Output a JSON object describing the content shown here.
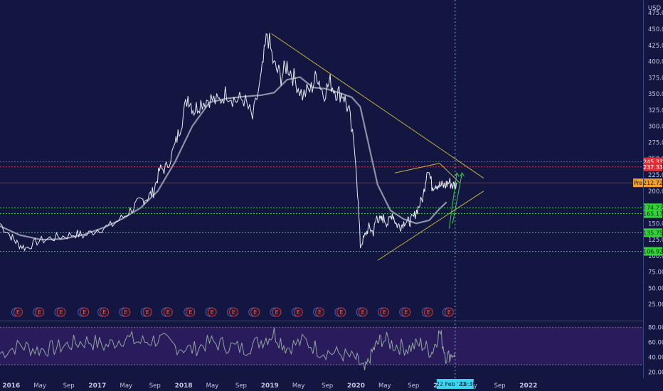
{
  "chart_data": {
    "type": "line",
    "currency": "USD",
    "price_axis": {
      "ticks": [
        475,
        450,
        425,
        400,
        375,
        350,
        325,
        300,
        275,
        250,
        225,
        200,
        175,
        150,
        125,
        100,
        75,
        50,
        25
      ],
      "labels": [
        "475.00",
        "450.00",
        "425.00",
        "400.00",
        "375.00",
        "350.00",
        "325.00",
        "300.00",
        "275.00",
        "250.00",
        "225.00",
        "200.00",
        "175.00",
        "150.00",
        "125.00",
        "100.00",
        "75.00",
        "50.00",
        "25.00"
      ],
      "range": [
        0,
        495
      ]
    },
    "rsi_axis": {
      "ticks": [
        80,
        60,
        40,
        20
      ],
      "labels": [
        "80.00",
        "60.00",
        "40.00",
        "20.00"
      ],
      "range": [
        12,
        88
      ],
      "band": [
        30,
        80
      ]
    },
    "time_axis": {
      "labels": [
        "2016",
        "May",
        "Sep",
        "2017",
        "May",
        "Sep",
        "2018",
        "May",
        "Sep",
        "2019",
        "May",
        "Sep",
        "2020",
        "May",
        "Sep",
        "2021",
        "May",
        "Sep",
        "2022"
      ],
      "values": [
        2016.0,
        2016.333,
        2016.667,
        2017.0,
        2017.333,
        2017.667,
        2018.0,
        2018.333,
        2018.667,
        2019.0,
        2019.333,
        2019.667,
        2020.0,
        2020.333,
        2020.667,
        2021.0,
        2021.333,
        2021.667,
        2022.0
      ],
      "range": [
        2015.87,
        2023.33
      ]
    },
    "price_series": {
      "x": [
        2015.87,
        2016.0,
        2016.08,
        2016.17,
        2016.3,
        2016.45,
        2016.6,
        2016.75,
        2016.85,
        2017.0,
        2017.15,
        2017.3,
        2017.42,
        2017.5,
        2017.58,
        2017.65,
        2017.72,
        2017.8,
        2017.9,
        2017.97,
        2018.05,
        2018.12,
        2018.2,
        2018.3,
        2018.4,
        2018.5,
        2018.6,
        2018.7,
        2018.8,
        2018.9,
        2018.97,
        2019.05,
        2019.13,
        2019.2,
        2019.28,
        2019.38,
        2019.48,
        2019.55,
        2019.62,
        2019.7,
        2019.78,
        2019.85,
        2019.92,
        2020.0,
        2020.05,
        2020.1,
        2020.15,
        2020.2,
        2020.24,
        2020.28,
        2020.32,
        2020.37,
        2020.42,
        2020.47,
        2020.52,
        2020.57,
        2020.62,
        2020.67,
        2020.72,
        2020.78,
        2020.83,
        2020.88,
        2020.93,
        2020.98,
        2021.03,
        2021.08,
        2021.13,
        2021.17
      ],
      "y": [
        150,
        130,
        118,
        112,
        122,
        127,
        130,
        134,
        131,
        141,
        146,
        160,
        175,
        185,
        190,
        199,
        232,
        236,
        270,
        304,
        347,
        325,
        337,
        343,
        337,
        353,
        340,
        342,
        312,
        375,
        444,
        393,
        377,
        395,
        375,
        348,
        358,
        381,
        350,
        368,
        352,
        350,
        321,
        244,
        115,
        130,
        144,
        136,
        160,
        154,
        158,
        150,
        166,
        148,
        146,
        154,
        152,
        160,
        174,
        192,
        239,
        208,
        212,
        208,
        208,
        214,
        208,
        213
      ]
    },
    "moving_average": {
      "x": [
        2015.87,
        2016.1,
        2016.35,
        2016.6,
        2016.85,
        2017.1,
        2017.3,
        2017.5,
        2017.7,
        2017.9,
        2018.1,
        2018.3,
        2018.5,
        2018.7,
        2018.9,
        2019.05,
        2019.2,
        2019.35,
        2019.5,
        2019.65,
        2019.8,
        2019.95,
        2020.05,
        2020.15,
        2020.25,
        2020.4,
        2020.55,
        2020.7,
        2020.85,
        2020.95,
        2021.05
      ],
      "y": [
        146,
        132,
        125,
        126,
        133,
        145,
        158,
        174,
        200,
        245,
        300,
        337,
        343,
        346,
        348,
        352,
        372,
        376,
        360,
        358,
        352,
        345,
        330,
        270,
        210,
        170,
        157,
        150,
        155,
        170,
        183
      ]
    },
    "trend_lines": [
      {
        "name": "",
        "x": [
          2019.02,
          2021.48
        ],
        "y": [
          443,
          220
        ]
      },
      {
        "name": "",
        "x": [
          2020.25,
          2021.48
        ],
        "y": [
          93,
          200
        ]
      },
      {
        "name": "",
        "x": [
          2020.45,
          2020.97
        ],
        "y": [
          228,
          243
        ]
      },
      {
        "name": "",
        "x": [
          2020.97,
          2021.2
        ],
        "y": [
          243,
          213
        ]
      }
    ],
    "resistance_levels": [
      {
        "value": 245.33,
        "label": "245.33"
      },
      {
        "value": 237.33,
        "label": "237.33"
      }
    ],
    "support_levels": [
      {
        "value": 174.27,
        "label": "174.27"
      },
      {
        "value": 165.17,
        "label": "165.17"
      },
      {
        "value": 135.75,
        "label": "135.75"
      },
      {
        "value": 106.92,
        "label": "106.92"
      }
    ],
    "pre_market": {
      "value": 212.72,
      "label": "212.72",
      "tag": "Pre"
    },
    "earnings_events": {
      "x": [
        2016.08,
        2016.33,
        2016.58,
        2016.85,
        2017.08,
        2017.33,
        2017.58,
        2017.82,
        2018.08,
        2018.33,
        2018.58,
        2018.83,
        2019.08,
        2019.33,
        2019.58,
        2019.83,
        2020.08,
        2020.33,
        2020.58,
        2020.84,
        2021.08
      ],
      "label": "E"
    },
    "forecast_arrows": [
      {
        "x": [
          2021.08,
          2021.17
        ],
        "y": [
          142,
          228
        ]
      },
      {
        "x": [
          2021.12,
          2021.23
        ],
        "y": [
          150,
          228
        ]
      }
    ],
    "rsi_series": {
      "x": [
        2015.87,
        2016.1,
        2016.3,
        2016.5,
        2016.7,
        2016.9,
        2017.1,
        2017.3,
        2017.5,
        2017.7,
        2017.9,
        2018.1,
        2018.3,
        2018.5,
        2018.7,
        2018.9,
        2019.05,
        2019.2,
        2019.4,
        2019.6,
        2019.8,
        2020.0,
        2020.1,
        2020.2,
        2020.3,
        2020.45,
        2020.6,
        2020.75,
        2020.88,
        2020.97,
        2021.05,
        2021.15
      ],
      "y": [
        45,
        56,
        50,
        52,
        58,
        62,
        55,
        66,
        60,
        64,
        55,
        50,
        60,
        56,
        51,
        62,
        72,
        53,
        62,
        48,
        45,
        38,
        22,
        50,
        65,
        56,
        52,
        58,
        47,
        74,
        40,
        47
      ]
    },
    "crosshair": {
      "x": 2021.15,
      "date_label": "22 Feb '21",
      "time_label": "14:30"
    }
  }
}
